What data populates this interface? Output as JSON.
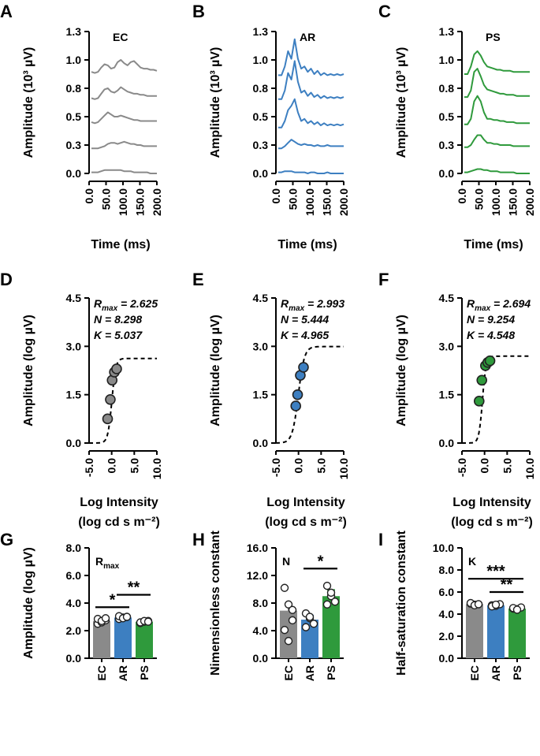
{
  "colors": {
    "EC": "#8a8a8a",
    "AR": "#3d7fc1",
    "PS": "#2f9a3c",
    "axis": "#000000"
  },
  "chart_data": [
    {
      "panel": "A",
      "type": "line",
      "group": "EC",
      "inset_label": "EC",
      "xlabel": "Time (ms)",
      "ylabel": "Amplitude (10³ µV)",
      "xlim": [
        0,
        200
      ],
      "ylim": [
        0,
        1.3
      ],
      "xticks": [
        "0.0",
        "50.0",
        "100.0",
        "150.0",
        "200.0"
      ],
      "yticks": [
        "0.0",
        "0.3",
        "0.5",
        "0.8",
        "1.0",
        "1.3"
      ],
      "series": [
        {
          "name": "step 1",
          "x": [
            0,
            10,
            20,
            30,
            40,
            50,
            60,
            70,
            80,
            90,
            100,
            110,
            120,
            130,
            140,
            150,
            160,
            170,
            180,
            190,
            200
          ],
          "y": [
            0.01,
            0.01,
            0.01,
            0.02,
            0.03,
            0.03,
            0.03,
            0.03,
            0.03,
            0.03,
            0.02,
            0.02,
            0.02,
            0.01,
            0.01,
            0.01,
            0.01,
            0.01,
            0.0,
            0.0,
            0.0
          ]
        },
        {
          "name": "step 2",
          "x": [
            0,
            10,
            20,
            30,
            40,
            50,
            60,
            70,
            80,
            90,
            100,
            110,
            120,
            130,
            140,
            150,
            160,
            170,
            180,
            190,
            200
          ],
          "y": [
            0.23,
            0.23,
            0.23,
            0.24,
            0.25,
            0.27,
            0.28,
            0.28,
            0.27,
            0.28,
            0.29,
            0.28,
            0.27,
            0.27,
            0.26,
            0.26,
            0.25,
            0.25,
            0.25,
            0.25,
            0.25
          ]
        },
        {
          "name": "step 3",
          "x": [
            0,
            10,
            20,
            30,
            40,
            50,
            60,
            70,
            80,
            90,
            100,
            110,
            120,
            130,
            140,
            150,
            160,
            170,
            180,
            190,
            200
          ],
          "y": [
            0.47,
            0.46,
            0.47,
            0.5,
            0.53,
            0.56,
            0.54,
            0.52,
            0.52,
            0.53,
            0.52,
            0.51,
            0.5,
            0.49,
            0.49,
            0.48,
            0.48,
            0.48,
            0.48,
            0.48,
            0.48
          ]
        },
        {
          "name": "step 4",
          "x": [
            0,
            10,
            20,
            30,
            40,
            50,
            60,
            70,
            80,
            90,
            100,
            110,
            120,
            130,
            140,
            150,
            160,
            170,
            180,
            190,
            200
          ],
          "y": [
            0.69,
            0.68,
            0.69,
            0.73,
            0.77,
            0.78,
            0.75,
            0.74,
            0.76,
            0.79,
            0.77,
            0.75,
            0.74,
            0.73,
            0.73,
            0.72,
            0.72,
            0.71,
            0.71,
            0.71,
            0.71
          ]
        },
        {
          "name": "step 5",
          "x": [
            0,
            10,
            20,
            30,
            40,
            50,
            60,
            70,
            80,
            90,
            100,
            110,
            120,
            130,
            140,
            150,
            160,
            170,
            180,
            190,
            200
          ],
          "y": [
            0.93,
            0.92,
            0.93,
            0.97,
            1.0,
            0.99,
            0.96,
            0.97,
            1.02,
            1.04,
            1.01,
            0.99,
            1.02,
            1.03,
            1.0,
            0.97,
            0.96,
            0.96,
            0.95,
            0.95,
            0.94
          ]
        }
      ]
    },
    {
      "panel": "B",
      "type": "line",
      "group": "AR",
      "inset_label": "AR",
      "xlabel": "Time (ms)",
      "ylabel": "Amplitude (10³ µV)",
      "xlim": [
        0,
        200
      ],
      "ylim": [
        0,
        1.3
      ],
      "xticks": [
        "0.0",
        "50.0",
        "100.0",
        "150.0",
        "200.0"
      ],
      "yticks": [
        "0.0",
        "0.3",
        "0.5",
        "0.8",
        "1.0",
        "1.3"
      ],
      "series": [
        {
          "name": "step 1",
          "x": [
            0,
            10,
            20,
            30,
            40,
            50,
            60,
            70,
            80,
            90,
            100,
            110,
            120,
            130,
            140,
            150,
            160,
            170,
            180,
            190,
            200
          ],
          "y": [
            0.01,
            0.01,
            0.02,
            0.02,
            0.02,
            0.01,
            0.01,
            0.01,
            0.01,
            0.0,
            0.01,
            0.01,
            0.0,
            0.0,
            0.0,
            0.01,
            0.0,
            0.0,
            0.0,
            0.0,
            0.0
          ]
        },
        {
          "name": "step 2",
          "x": [
            0,
            10,
            20,
            30,
            40,
            50,
            60,
            70,
            80,
            90,
            100,
            110,
            120,
            130,
            140,
            150,
            160,
            170,
            180,
            190,
            200
          ],
          "y": [
            0.23,
            0.23,
            0.25,
            0.28,
            0.31,
            0.29,
            0.27,
            0.26,
            0.27,
            0.26,
            0.26,
            0.25,
            0.26,
            0.25,
            0.25,
            0.26,
            0.25,
            0.25,
            0.25,
            0.25,
            0.25
          ]
        },
        {
          "name": "step 3",
          "x": [
            0,
            10,
            20,
            30,
            40,
            50,
            60,
            70,
            80,
            90,
            100,
            110,
            120,
            130,
            140,
            150,
            160,
            170,
            180,
            190,
            200
          ],
          "y": [
            0.42,
            0.42,
            0.48,
            0.58,
            0.62,
            0.68,
            0.56,
            0.48,
            0.5,
            0.46,
            0.48,
            0.45,
            0.47,
            0.44,
            0.46,
            0.44,
            0.45,
            0.44,
            0.45,
            0.44,
            0.45
          ]
        },
        {
          "name": "step 4",
          "x": [
            0,
            10,
            20,
            30,
            40,
            50,
            60,
            70,
            80,
            90,
            100,
            110,
            120,
            130,
            140,
            150,
            160,
            170,
            180,
            190,
            200
          ],
          "y": [
            0.68,
            0.68,
            0.76,
            0.92,
            0.86,
            1.03,
            0.84,
            0.74,
            0.76,
            0.71,
            0.74,
            0.7,
            0.72,
            0.69,
            0.71,
            0.69,
            0.7,
            0.69,
            0.7,
            0.69,
            0.7
          ]
        },
        {
          "name": "step 5",
          "x": [
            0,
            10,
            20,
            30,
            40,
            50,
            60,
            70,
            80,
            90,
            100,
            110,
            120,
            130,
            140,
            150,
            160,
            170,
            180,
            190,
            200
          ],
          "y": [
            0.9,
            0.9,
            0.98,
            1.12,
            1.05,
            1.23,
            1.05,
            0.96,
            0.98,
            0.93,
            0.96,
            0.91,
            0.94,
            0.9,
            0.92,
            0.9,
            0.91,
            0.9,
            0.91,
            0.9,
            0.91
          ]
        }
      ]
    },
    {
      "panel": "C",
      "type": "line",
      "group": "PS",
      "inset_label": "PS",
      "xlabel": "Time (ms)",
      "ylabel": "Amplitude (10³ µV)",
      "xlim": [
        0,
        200
      ],
      "ylim": [
        0,
        1.3
      ],
      "xticks": [
        "0.0",
        "50.0",
        "100.0",
        "150.0",
        "200.0"
      ],
      "yticks": [
        "0.0",
        "0.3",
        "0.5",
        "0.8",
        "1.0",
        "1.3"
      ],
      "series": [
        {
          "name": "step 1",
          "x": [
            0,
            10,
            20,
            30,
            40,
            50,
            60,
            70,
            80,
            90,
            100,
            110,
            120,
            130,
            140,
            150,
            160,
            170,
            180,
            190,
            200
          ],
          "y": [
            0.01,
            0.01,
            0.02,
            0.03,
            0.04,
            0.04,
            0.03,
            0.03,
            0.02,
            0.02,
            0.02,
            0.01,
            0.01,
            0.01,
            0.01,
            0.01,
            0.0,
            0.0,
            0.0,
            0.0,
            0.0
          ]
        },
        {
          "name": "step 2",
          "x": [
            0,
            10,
            20,
            30,
            40,
            50,
            60,
            70,
            80,
            90,
            100,
            110,
            120,
            130,
            140,
            150,
            160,
            170,
            180,
            190,
            200
          ],
          "y": [
            0.24,
            0.24,
            0.26,
            0.31,
            0.35,
            0.35,
            0.31,
            0.28,
            0.28,
            0.27,
            0.27,
            0.26,
            0.26,
            0.26,
            0.26,
            0.25,
            0.25,
            0.25,
            0.25,
            0.25,
            0.25
          ]
        },
        {
          "name": "step 3",
          "x": [
            0,
            10,
            20,
            30,
            40,
            50,
            60,
            70,
            80,
            90,
            100,
            110,
            120,
            130,
            140,
            150,
            160,
            170,
            180,
            190,
            200
          ],
          "y": [
            0.45,
            0.45,
            0.5,
            0.66,
            0.71,
            0.66,
            0.56,
            0.5,
            0.5,
            0.49,
            0.49,
            0.48,
            0.48,
            0.47,
            0.47,
            0.47,
            0.46,
            0.46,
            0.46,
            0.46,
            0.46
          ]
        },
        {
          "name": "step 4",
          "x": [
            0,
            10,
            20,
            30,
            40,
            50,
            60,
            70,
            80,
            90,
            100,
            110,
            120,
            130,
            140,
            150,
            160,
            170,
            180,
            190,
            200
          ],
          "y": [
            0.7,
            0.7,
            0.76,
            0.93,
            0.96,
            0.89,
            0.81,
            0.77,
            0.76,
            0.75,
            0.74,
            0.73,
            0.73,
            0.72,
            0.72,
            0.72,
            0.71,
            0.71,
            0.71,
            0.71,
            0.71
          ]
        },
        {
          "name": "step 5",
          "x": [
            0,
            10,
            20,
            30,
            40,
            50,
            60,
            70,
            80,
            90,
            100,
            110,
            120,
            130,
            140,
            150,
            160,
            170,
            180,
            190,
            200
          ],
          "y": [
            0.91,
            0.91,
            0.98,
            1.09,
            1.12,
            1.08,
            1.02,
            0.98,
            0.97,
            0.96,
            0.95,
            0.95,
            0.94,
            0.94,
            0.94,
            0.93,
            0.93,
            0.93,
            0.93,
            0.93,
            0.93
          ]
        }
      ]
    },
    {
      "panel": "D",
      "type": "scatter",
      "group": "EC",
      "xlabel_line1": "Log Intensity",
      "xlabel_line2": "(log cd s m⁻²)",
      "ylabel": "Amplitude (log µV)",
      "xlim": [
        -5,
        10
      ],
      "ylim": [
        0,
        4.5
      ],
      "xticks": [
        "-5.0",
        "0.0",
        "5.0",
        "10.0"
      ],
      "yticks": [
        "0.0",
        "1.5",
        "3.0",
        "4.5"
      ],
      "fit": {
        "rmax": 2.625,
        "n": 8.298,
        "k": 5.037
      },
      "annotations": [
        "R",
        "max",
        " = 2.625",
        "N = 8.298",
        "K = 5.037"
      ],
      "points": {
        "x": [
          -0.9,
          -0.3,
          0.1,
          0.6,
          1.1
        ],
        "y": [
          0.75,
          1.35,
          1.95,
          2.2,
          2.3
        ]
      }
    },
    {
      "panel": "E",
      "type": "scatter",
      "group": "AR",
      "xlabel_line1": "Log Intensity",
      "xlabel_line2": "(log cd s m⁻²)",
      "ylabel": "Amplitude (log µV)",
      "xlim": [
        -5,
        10
      ],
      "ylim": [
        0,
        4.5
      ],
      "xticks": [
        "-5.0",
        "0.0",
        "5.0",
        "10.0"
      ],
      "yticks": [
        "0.0",
        "1.5",
        "3.0",
        "4.5"
      ],
      "fit": {
        "rmax": 2.993,
        "n": 5.444,
        "k": 4.965
      },
      "annotations": [
        "R",
        "max",
        " = 2.993",
        "N = 5.444",
        "K = 4.965"
      ],
      "points": {
        "x": [
          -0.6,
          -0.2,
          0.4,
          1.1
        ],
        "y": [
          1.15,
          1.5,
          2.1,
          2.35
        ]
      }
    },
    {
      "panel": "F",
      "type": "scatter",
      "group": "PS",
      "xlabel_line1": "Log Intensity",
      "xlabel_line2": "(log cd s m⁻²)",
      "ylabel": "Amplitude (log µV)",
      "xlim": [
        -5,
        10
      ],
      "ylim": [
        0,
        4.5
      ],
      "xticks": [
        "-5.0",
        "0.0",
        "5.0",
        "10.0"
      ],
      "yticks": [
        "0.0",
        "1.5",
        "3.0",
        "4.5"
      ],
      "fit": {
        "rmax": 2.694,
        "n": 9.254,
        "k": 4.548
      },
      "annotations": [
        "R",
        "max",
        " = 2.694",
        "N = 9.254",
        "K = 4.548"
      ],
      "points": {
        "x": [
          -1.2,
          -0.6,
          0.2,
          0.7,
          1.2
        ],
        "y": [
          1.3,
          1.95,
          2.4,
          2.5,
          2.55
        ]
      }
    },
    {
      "panel": "G",
      "type": "bar",
      "ylabel": "Amplitude (log µV)",
      "inset_label": "R",
      "inset_sub": "max",
      "categories": [
        "EC",
        "AR",
        "PS"
      ],
      "values": [
        2.7,
        2.95,
        2.65
      ],
      "errors": [
        0.08,
        0.07,
        0.05
      ],
      "dots": [
        [
          2.5,
          2.6,
          2.75,
          2.85,
          2.7,
          2.9
        ],
        [
          2.85,
          2.95,
          3.0,
          3.05,
          2.9,
          3.0
        ],
        [
          2.55,
          2.65,
          2.7,
          2.6,
          2.7,
          2.65
        ]
      ],
      "ylim": [
        0,
        8
      ],
      "yticks": [
        "0.0",
        "2.0",
        "4.0",
        "6.0",
        "8.0"
      ],
      "significance": [
        {
          "from": 0,
          "to": 1,
          "label": "*",
          "y": 3.7
        },
        {
          "from": 1,
          "to": 2,
          "label": "**",
          "y": 4.6
        }
      ]
    },
    {
      "panel": "H",
      "type": "bar",
      "ylabel": "Nimensionless constant",
      "inset_label": "N",
      "inset_sub": "",
      "categories": [
        "EC",
        "AR",
        "PS"
      ],
      "values": [
        6.9,
        5.6,
        9.0
      ],
      "errors": [
        1.0,
        0.6,
        0.9
      ],
      "dots": [
        [
          10.2,
          7.8,
          5.5,
          4.1,
          2.5,
          7.0
        ],
        [
          6.5,
          5.8,
          5.0,
          4.5,
          6.0
        ],
        [
          10.5,
          9.0,
          8.2,
          7.8,
          9.5
        ]
      ],
      "ylim": [
        0,
        16
      ],
      "yticks": [
        "0.0",
        "4.0",
        "8.0",
        "12.0",
        "16.0"
      ],
      "significance": [
        {
          "from": 1,
          "to": 2,
          "label": "*",
          "y": 13.0
        }
      ]
    },
    {
      "panel": "I",
      "type": "bar",
      "ylabel": "Half-saturation constant",
      "inset_label": "K",
      "inset_sub": "",
      "categories": [
        "EC",
        "AR",
        "PS"
      ],
      "values": [
        4.9,
        4.8,
        4.5
      ],
      "errors": [
        0.05,
        0.06,
        0.06
      ],
      "dots": [
        [
          4.95,
          4.85,
          4.9,
          5.0,
          4.8,
          4.9
        ],
        [
          4.8,
          4.75,
          4.9,
          4.7,
          4.85
        ],
        [
          4.5,
          4.45,
          4.6,
          4.55,
          4.4
        ]
      ],
      "ylim": [
        0,
        10
      ],
      "yticks": [
        "0.0",
        "2.0",
        "4.0",
        "6.0",
        "8.0",
        "10.0"
      ],
      "significance": [
        {
          "from": 0,
          "to": 2,
          "label": "***",
          "y": 7.2
        },
        {
          "from": 1,
          "to": 2,
          "label": "**",
          "y": 6.0
        }
      ]
    }
  ]
}
